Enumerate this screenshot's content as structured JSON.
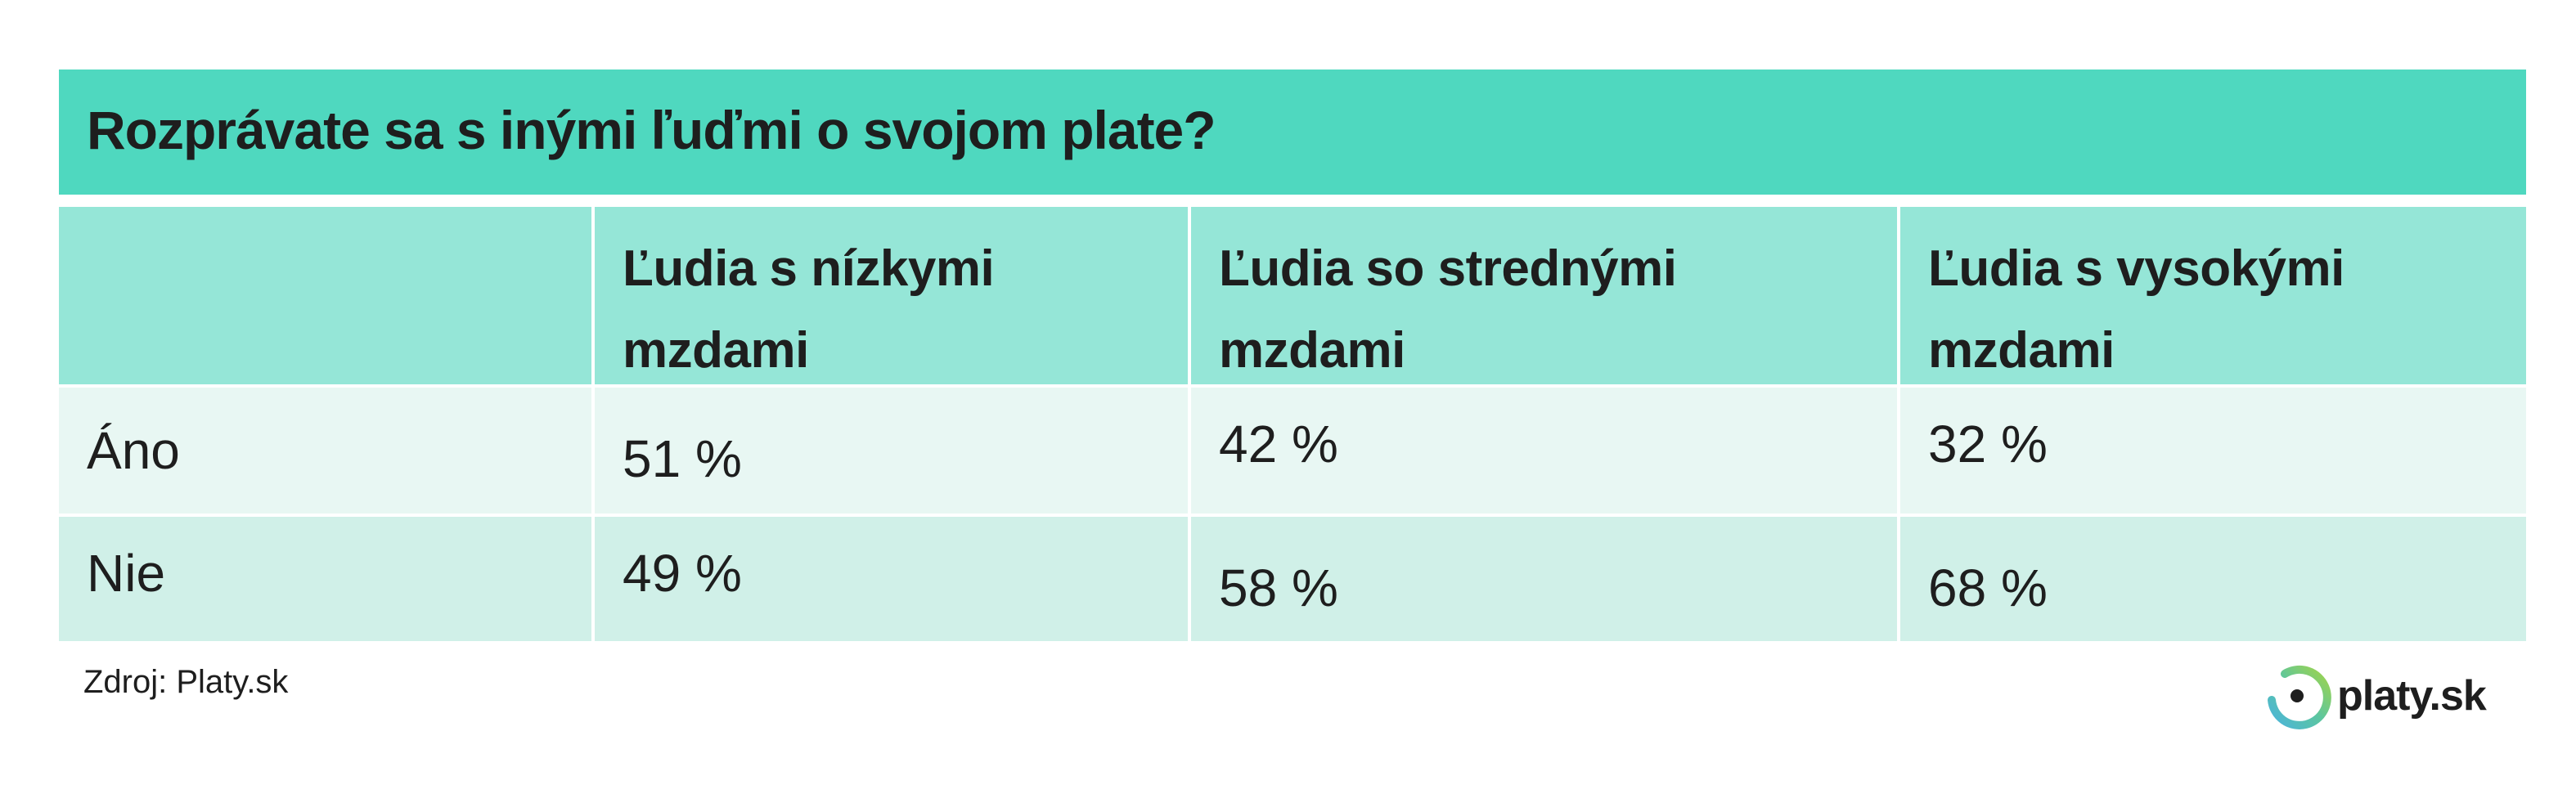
{
  "title": "Rozprávate sa s inými ľuďmi o svojom plate?",
  "headers": [
    "",
    "Ľudia s nízkymi mzdami",
    "Ľudia so strednými mzdami",
    "Ľudia s vysokými mzdami"
  ],
  "rows": [
    {
      "label": "Áno",
      "values": [
        "51 %",
        "42 %",
        "32 %"
      ]
    },
    {
      "label": "Nie",
      "values": [
        "49 %",
        "58 %",
        "68 %"
      ]
    }
  ],
  "source": "Zdroj: Platy.sk",
  "logo": {
    "text": "platy.sk",
    "icon": "platy-ring-logo-icon"
  },
  "colors": {
    "title_bg": "#4fd8bf",
    "header_bg": "#95e6d7",
    "row1_bg": "#e8f7f3",
    "row2_bg": "#d0f0e8"
  }
}
